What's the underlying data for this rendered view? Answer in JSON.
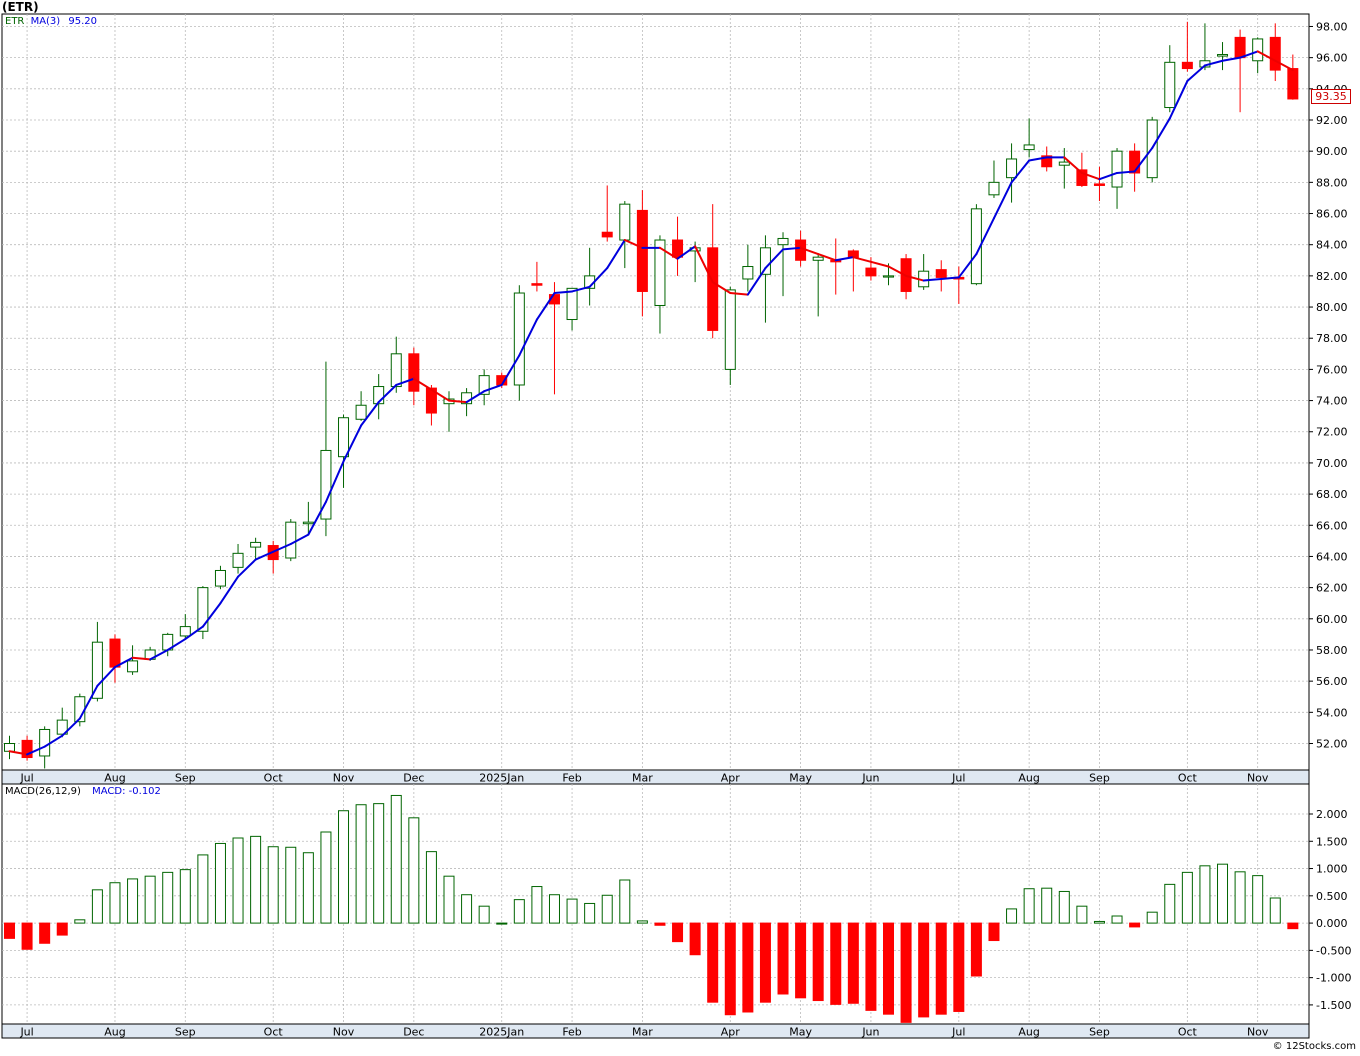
{
  "title": "(ETR)",
  "legend": {
    "symbol": "ETR",
    "ma_label": "MA(3)",
    "ma_value": "95.20",
    "macd_label": "MACD(26,12,9)",
    "macd_value_label": "MACD: -0.102"
  },
  "last_price_label": "93.35",
  "credit": "© 12Stocks.com",
  "colors": {
    "up": "#006400",
    "down": "#ff0000",
    "ma_up": "#0000dd",
    "ma_down": "#ee0000",
    "grid": "#bbbbbb",
    "axis_bg": "#dfe8f2"
  },
  "chart_data": [
    {
      "type": "candlestick",
      "title": "(ETR)",
      "ylim": [
        50.3,
        98.8
      ],
      "ticks": [
        "52.00",
        "54.00",
        "56.00",
        "58.00",
        "60.00",
        "62.00",
        "64.00",
        "66.00",
        "68.00",
        "70.00",
        "72.00",
        "74.00",
        "76.00",
        "78.00",
        "80.00",
        "82.00",
        "84.00",
        "86.00",
        "88.00",
        "90.00",
        "92.00",
        "94.00",
        "96.00",
        "98.00"
      ],
      "x_labels": [
        "Jul",
        "Aug",
        "Sep",
        "Oct",
        "Nov",
        "Dec",
        "2025Jan",
        "Feb",
        "Mar",
        "Apr",
        "May",
        "Jun",
        "Jul",
        "Aug",
        "Sep",
        "Oct",
        "Nov"
      ],
      "x_label_weeks": [
        1,
        6,
        10,
        15,
        19,
        23,
        28,
        32,
        36,
        41,
        45,
        49,
        54,
        58,
        62,
        67,
        71
      ],
      "grid": true,
      "candles": [
        {
          "o": 51.5,
          "h": 52.5,
          "l": 51.0,
          "c": 52.0
        },
        {
          "o": 52.2,
          "h": 52.5,
          "l": 50.9,
          "c": 51.1
        },
        {
          "o": 51.2,
          "h": 53.1,
          "l": 50.4,
          "c": 52.9
        },
        {
          "o": 52.6,
          "h": 54.3,
          "l": 52.4,
          "c": 53.5
        },
        {
          "o": 53.4,
          "h": 55.2,
          "l": 53.1,
          "c": 55.0
        },
        {
          "o": 54.9,
          "h": 59.8,
          "l": 54.7,
          "c": 58.5
        },
        {
          "o": 58.7,
          "h": 59.0,
          "l": 55.9,
          "c": 56.9
        },
        {
          "o": 56.6,
          "h": 58.3,
          "l": 56.4,
          "c": 57.3
        },
        {
          "o": 57.4,
          "h": 58.2,
          "l": 57.3,
          "c": 58.0
        },
        {
          "o": 58.0,
          "h": 59.1,
          "l": 57.6,
          "c": 59.0
        },
        {
          "o": 58.9,
          "h": 60.3,
          "l": 58.7,
          "c": 59.5
        },
        {
          "o": 59.2,
          "h": 62.1,
          "l": 58.7,
          "c": 62.0
        },
        {
          "o": 62.1,
          "h": 63.4,
          "l": 61.9,
          "c": 63.1
        },
        {
          "o": 63.3,
          "h": 64.8,
          "l": 62.9,
          "c": 64.2
        },
        {
          "o": 64.6,
          "h": 65.2,
          "l": 63.8,
          "c": 64.9
        },
        {
          "o": 64.7,
          "h": 65.0,
          "l": 62.9,
          "c": 63.8
        },
        {
          "o": 63.9,
          "h": 66.4,
          "l": 63.7,
          "c": 66.2
        },
        {
          "o": 66.1,
          "h": 67.5,
          "l": 65.4,
          "c": 66.2
        },
        {
          "o": 66.4,
          "h": 76.5,
          "l": 65.3,
          "c": 70.8
        },
        {
          "o": 70.4,
          "h": 73.1,
          "l": 68.4,
          "c": 72.9
        },
        {
          "o": 72.8,
          "h": 74.6,
          "l": 72.7,
          "c": 73.7
        },
        {
          "o": 73.8,
          "h": 75.7,
          "l": 72.8,
          "c": 74.9
        },
        {
          "o": 74.9,
          "h": 78.1,
          "l": 74.5,
          "c": 77.0
        },
        {
          "o": 77.0,
          "h": 77.4,
          "l": 73.7,
          "c": 74.6
        },
        {
          "o": 74.8,
          "h": 75.0,
          "l": 72.4,
          "c": 73.2
        },
        {
          "o": 73.8,
          "h": 74.6,
          "l": 72.0,
          "c": 74.1
        },
        {
          "o": 73.8,
          "h": 74.8,
          "l": 73.0,
          "c": 74.5
        },
        {
          "o": 74.4,
          "h": 76.0,
          "l": 73.7,
          "c": 75.6
        },
        {
          "o": 75.6,
          "h": 75.8,
          "l": 74.8,
          "c": 75.0
        },
        {
          "o": 75.0,
          "h": 81.4,
          "l": 74.0,
          "c": 80.9
        },
        {
          "o": 81.5,
          "h": 82.9,
          "l": 81.0,
          "c": 81.4
        },
        {
          "o": 80.8,
          "h": 81.6,
          "l": 74.4,
          "c": 80.2
        },
        {
          "o": 79.2,
          "h": 81.2,
          "l": 78.5,
          "c": 81.2
        },
        {
          "o": 81.2,
          "h": 83.8,
          "l": 80.1,
          "c": 82.0
        },
        {
          "o": 84.8,
          "h": 87.8,
          "l": 84.2,
          "c": 84.5
        },
        {
          "o": 84.3,
          "h": 86.8,
          "l": 82.5,
          "c": 86.6
        },
        {
          "o": 86.2,
          "h": 87.5,
          "l": 79.4,
          "c": 81.0
        },
        {
          "o": 80.1,
          "h": 84.6,
          "l": 78.3,
          "c": 84.3
        },
        {
          "o": 84.3,
          "h": 85.8,
          "l": 82.0,
          "c": 83.2
        },
        {
          "o": 83.6,
          "h": 84.2,
          "l": 81.6,
          "c": 83.8
        },
        {
          "o": 83.8,
          "h": 86.6,
          "l": 78.0,
          "c": 78.5
        },
        {
          "o": 76.0,
          "h": 81.3,
          "l": 75.0,
          "c": 81.1
        },
        {
          "o": 81.8,
          "h": 84.0,
          "l": 81.0,
          "c": 82.6
        },
        {
          "o": 82.1,
          "h": 84.6,
          "l": 79.0,
          "c": 83.8
        },
        {
          "o": 84.0,
          "h": 84.8,
          "l": 80.7,
          "c": 84.4
        },
        {
          "o": 84.3,
          "h": 84.9,
          "l": 82.6,
          "c": 83.0
        },
        {
          "o": 83.0,
          "h": 83.4,
          "l": 79.4,
          "c": 83.2
        },
        {
          "o": 83.0,
          "h": 84.4,
          "l": 80.8,
          "c": 82.9
        },
        {
          "o": 83.6,
          "h": 83.7,
          "l": 81.0,
          "c": 83.2
        },
        {
          "o": 82.5,
          "h": 83.2,
          "l": 81.7,
          "c": 82.0
        },
        {
          "o": 82.0,
          "h": 82.8,
          "l": 81.4,
          "c": 82.0
        },
        {
          "o": 83.1,
          "h": 83.4,
          "l": 80.5,
          "c": 81.0
        },
        {
          "o": 81.3,
          "h": 83.4,
          "l": 81.1,
          "c": 82.3
        },
        {
          "o": 82.4,
          "h": 83.0,
          "l": 81.0,
          "c": 81.9
        },
        {
          "o": 81.9,
          "h": 82.6,
          "l": 80.2,
          "c": 81.8
        },
        {
          "o": 81.5,
          "h": 86.6,
          "l": 81.4,
          "c": 86.3
        },
        {
          "o": 87.2,
          "h": 89.4,
          "l": 87.0,
          "c": 88.0
        },
        {
          "o": 88.3,
          "h": 90.5,
          "l": 86.7,
          "c": 89.5
        },
        {
          "o": 90.1,
          "h": 92.1,
          "l": 89.6,
          "c": 90.4
        },
        {
          "o": 89.7,
          "h": 90.3,
          "l": 88.7,
          "c": 89.0
        },
        {
          "o": 89.1,
          "h": 90.2,
          "l": 87.6,
          "c": 89.3
        },
        {
          "o": 88.8,
          "h": 89.9,
          "l": 87.7,
          "c": 87.8
        },
        {
          "o": 87.9,
          "h": 89.0,
          "l": 86.8,
          "c": 87.8
        },
        {
          "o": 87.7,
          "h": 90.2,
          "l": 86.3,
          "c": 90.0
        },
        {
          "o": 90.0,
          "h": 90.5,
          "l": 87.4,
          "c": 88.6
        },
        {
          "o": 88.3,
          "h": 92.2,
          "l": 88.0,
          "c": 92.0
        },
        {
          "o": 92.8,
          "h": 96.8,
          "l": 92.5,
          "c": 95.7
        },
        {
          "o": 95.7,
          "h": 98.3,
          "l": 95.1,
          "c": 95.3
        },
        {
          "o": 95.4,
          "h": 98.2,
          "l": 95.2,
          "c": 95.8
        },
        {
          "o": 96.1,
          "h": 97.0,
          "l": 95.2,
          "c": 96.2
        },
        {
          "o": 97.3,
          "h": 97.8,
          "l": 92.5,
          "c": 96.0
        },
        {
          "o": 95.8,
          "h": 97.3,
          "l": 95.0,
          "c": 97.2
        },
        {
          "o": 97.3,
          "h": 98.2,
          "l": 94.5,
          "c": 95.2
        },
        {
          "o": 95.3,
          "h": 96.2,
          "l": 93.3,
          "c": 93.35
        }
      ],
      "ma": [
        51.5,
        51.3,
        51.8,
        52.5,
        53.6,
        55.7,
        56.9,
        57.5,
        57.4,
        58.0,
        58.7,
        59.5,
        61.0,
        62.7,
        63.8,
        64.3,
        64.8,
        65.4,
        67.5,
        70.1,
        72.4,
        73.9,
        75.0,
        75.4,
        74.7,
        74.0,
        73.9,
        74.6,
        75.0,
        76.9,
        79.2,
        80.9,
        81.0,
        81.3,
        82.5,
        84.3,
        83.8,
        83.8,
        83.1,
        83.9,
        81.6,
        80.9,
        80.8,
        82.5,
        83.7,
        83.8,
        83.4,
        83.0,
        83.2,
        82.9,
        82.6,
        82.0,
        81.7,
        81.8,
        81.9,
        83.4,
        85.7,
        88.0,
        89.4,
        89.6,
        89.6,
        88.6,
        88.2,
        88.6,
        88.7,
        90.2,
        92.1,
        94.5,
        95.5,
        95.8,
        96.0,
        96.4,
        95.8,
        95.2
      ]
    },
    {
      "type": "bar",
      "title": "MACD(26,12,9)",
      "ylim": [
        -1.85,
        2.55
      ],
      "ticks": [
        "-1.500",
        "-1.000",
        "-0.500",
        "0.000",
        "0.500",
        "1.000",
        "1.500",
        "2.000"
      ],
      "values": [
        -0.28,
        -0.48,
        -0.37,
        -0.22,
        0.06,
        0.61,
        0.74,
        0.81,
        0.86,
        0.93,
        0.98,
        1.25,
        1.46,
        1.56,
        1.59,
        1.4,
        1.39,
        1.29,
        1.67,
        2.06,
        2.17,
        2.19,
        2.34,
        1.93,
        1.31,
        0.86,
        0.52,
        0.31,
        0.0,
        0.43,
        0.67,
        0.52,
        0.44,
        0.36,
        0.51,
        0.79,
        0.04,
        -0.04,
        -0.34,
        -0.58,
        -1.45,
        -1.68,
        -1.63,
        -1.45,
        -1.3,
        -1.37,
        -1.42,
        -1.49,
        -1.47,
        -1.6,
        -1.67,
        -1.82,
        -1.72,
        -1.67,
        -1.62,
        -0.97,
        -0.32,
        0.26,
        0.63,
        0.64,
        0.58,
        0.31,
        0.03,
        0.13,
        -0.07,
        0.2,
        0.71,
        0.93,
        1.05,
        1.08,
        0.94,
        0.87,
        0.46,
        -0.102
      ]
    }
  ]
}
